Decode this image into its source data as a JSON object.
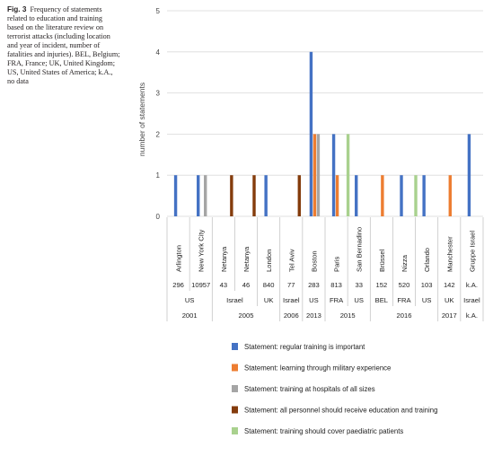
{
  "caption": {
    "label": "Fig. 3",
    "text": "Frequency of statements related to education and training based on the literature review on terrorist attacks (including location and year of incident, number of fatalities and injuries). BEL, Belgium; FRA, France; UK, United Kingdom; US, United States of America; k.A., no data"
  },
  "chart_data": {
    "type": "bar",
    "ylabel": "number of statements",
    "ylim": [
      0,
      5
    ],
    "yticks": [
      0,
      1,
      2,
      3,
      4,
      5
    ],
    "grid": true,
    "legend_position": "bottom",
    "categories": [
      "Arlington",
      "New York City",
      "Netanya",
      "Netanya",
      "London",
      "Tel Aviv",
      "Boston",
      "Paris",
      "San Bernadino",
      "Brüssel",
      "Nizza",
      "Orlando",
      "Manchester",
      "Gruppe Israel"
    ],
    "casualties": [
      "296",
      "10957",
      "43",
      "46",
      "840",
      "77",
      "283",
      "813",
      "33",
      "152",
      "520",
      "103",
      "142",
      "k.A."
    ],
    "countries": [
      {
        "label": "US",
        "span": 2
      },
      {
        "label": "Israel",
        "span": 2
      },
      {
        "label": "UK",
        "span": 1
      },
      {
        "label": "Israel",
        "span": 1
      },
      {
        "label": "US",
        "span": 1
      },
      {
        "label": "FRA",
        "span": 1
      },
      {
        "label": "US",
        "span": 1
      },
      {
        "label": "BEL",
        "span": 1
      },
      {
        "label": "FRA",
        "span": 1
      },
      {
        "label": "US",
        "span": 1
      },
      {
        "label": "UK",
        "span": 1
      },
      {
        "label": "Israel",
        "span": 1
      }
    ],
    "years": [
      {
        "label": "2001",
        "span": 2
      },
      {
        "label": "2005",
        "span": 3
      },
      {
        "label": "2006",
        "span": 1
      },
      {
        "label": "2013",
        "span": 1
      },
      {
        "label": "2015",
        "span": 2
      },
      {
        "label": "2016",
        "span": 3
      },
      {
        "label": "2017",
        "span": 1
      },
      {
        "label": "k.A.",
        "span": 1
      }
    ],
    "series": [
      {
        "name": "Statement: regular training is important",
        "color": "#4472c4",
        "values": [
          1,
          1,
          0,
          0,
          1,
          0,
          4,
          2,
          1,
          0,
          1,
          1,
          0,
          2
        ]
      },
      {
        "name": "Statement: learning through military experience",
        "color": "#ed7d31",
        "values": [
          0,
          0,
          0,
          0,
          0,
          0,
          2,
          1,
          0,
          1,
          0,
          0,
          1,
          0
        ]
      },
      {
        "name": "Statement: training at hospitals of all sizes",
        "color": "#a5a5a5",
        "values": [
          0,
          1,
          0,
          0,
          0,
          0,
          2,
          0,
          0,
          0,
          0,
          0,
          0,
          0
        ]
      },
      {
        "name": "Statement: all personnel should receive education and training",
        "color": "#843c0c",
        "values": [
          0,
          0,
          1,
          1,
          0,
          1,
          0,
          0,
          0,
          0,
          0,
          0,
          0,
          0
        ]
      },
      {
        "name": "Statement: training should cover paediatric patients",
        "color": "#a9d18e",
        "values": [
          0,
          0,
          0,
          0,
          0,
          0,
          0,
          2,
          0,
          0,
          1,
          0,
          0,
          0
        ]
      }
    ]
  }
}
